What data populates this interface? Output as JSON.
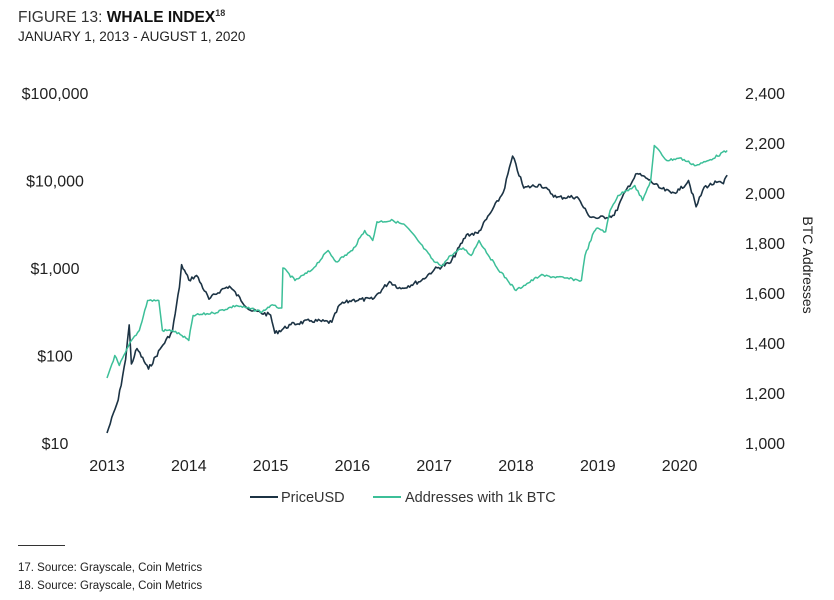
{
  "header": {
    "figure_label": "FIGURE 13: ",
    "title": "WHALE INDEX",
    "title_sup": "18",
    "subtitle": "JANUARY 1, 2013 - AUGUST 1, 2020"
  },
  "chart_data": {
    "type": "line",
    "title": "WHALE INDEX",
    "subtitle": "JANUARY 1, 2013 - AUGUST 1, 2020",
    "xlabel": "",
    "x_ticks": [
      "2013",
      "2014",
      "2015",
      "2016",
      "2017",
      "2018",
      "2019",
      "2020"
    ],
    "xlim": [
      "2013-01-01",
      "2020-08-01"
    ],
    "y_left": {
      "label": "",
      "scale": "log",
      "lim": [
        10,
        100000
      ],
      "ticks": [
        "$10",
        "$100",
        "$1,000",
        "$10,000",
        "$100,000"
      ],
      "tick_values": [
        10,
        100,
        1000,
        10000,
        100000
      ]
    },
    "y_right": {
      "label": "BTC Addresses",
      "scale": "linear",
      "lim": [
        1000,
        2400
      ],
      "ticks": [
        "1,000",
        "1,200",
        "1,400",
        "1,600",
        "1,800",
        "2,000",
        "2,200",
        "2,400"
      ],
      "tick_values": [
        1000,
        1200,
        1400,
        1600,
        1800,
        2000,
        2200,
        2400
      ]
    },
    "grid": false,
    "legend_placement": "bottom",
    "series": [
      {
        "name": "PriceUSD",
        "axis": "left",
        "color": "#1c3344",
        "x": [
          "2013-01-01",
          "2013-02-20",
          "2013-03-25",
          "2013-04-10",
          "2013-04-20",
          "2013-05-15",
          "2013-07-05",
          "2013-09-01",
          "2013-10-20",
          "2013-11-20",
          "2013-11-30",
          "2014-01-01",
          "2014-02-05",
          "2014-04-01",
          "2014-05-25",
          "2014-07-01",
          "2014-10-01",
          "2015-01-01",
          "2015-01-20",
          "2015-04-01",
          "2015-07-01",
          "2015-10-01",
          "2015-11-05",
          "2016-01-01",
          "2016-04-01",
          "2016-06-15",
          "2016-08-05",
          "2016-11-05",
          "2017-01-01",
          "2017-03-15",
          "2017-05-25",
          "2017-07-15",
          "2017-09-10",
          "2017-11-05",
          "2017-12-17",
          "2018-02-05",
          "2018-04-20",
          "2018-07-01",
          "2018-10-01",
          "2018-11-20",
          "2019-01-01",
          "2019-03-15",
          "2019-05-10",
          "2019-06-26",
          "2019-08-10",
          "2019-10-01",
          "2019-11-25",
          "2020-01-01",
          "2020-02-10",
          "2020-03-15",
          "2020-04-20",
          "2020-06-15",
          "2020-07-15",
          "2020-08-01"
        ],
        "values": [
          13,
          31,
          90,
          224,
          80,
          120,
          70,
          125,
          190,
          600,
          1090,
          730,
          820,
          440,
          560,
          620,
          330,
          290,
          180,
          225,
          250,
          240,
          380,
          430,
          440,
          700,
          580,
          720,
          960,
          1150,
          2400,
          2500,
          4300,
          7300,
          19000,
          8200,
          9000,
          6400,
          6500,
          4000,
          3700,
          4000,
          8000,
          12000,
          10500,
          8300,
          7200,
          7800,
          10000,
          5000,
          8400,
          9500,
          9200,
          11500
        ]
      },
      {
        "name": "Addresses with 1k BTC",
        "axis": "right",
        "color": "#3cbf98",
        "x": [
          "2013-01-01",
          "2013-02-05",
          "2013-02-25",
          "2013-04-20",
          "2013-05-25",
          "2013-07-01",
          "2013-08-20",
          "2013-09-05",
          "2013-10-20",
          "2013-12-01",
          "2014-01-01",
          "2014-01-20",
          "2014-04-20",
          "2014-08-01",
          "2014-11-25",
          "2015-01-01",
          "2015-02-20",
          "2015-02-25",
          "2015-04-20",
          "2015-07-01",
          "2015-09-15",
          "2015-10-20",
          "2016-01-01",
          "2016-02-25",
          "2016-04-01",
          "2016-04-20",
          "2016-07-01",
          "2016-08-25",
          "2016-10-20",
          "2017-01-01",
          "2017-02-05",
          "2017-03-15",
          "2017-05-10",
          "2017-06-15",
          "2017-07-20",
          "2017-10-01",
          "2017-11-25",
          "2018-01-01",
          "2018-02-05",
          "2018-04-20",
          "2018-08-05",
          "2018-10-20",
          "2018-11-05",
          "2018-12-15",
          "2019-01-01",
          "2019-02-05",
          "2019-02-25",
          "2019-04-01",
          "2019-05-10",
          "2019-06-15",
          "2019-07-20",
          "2019-08-25",
          "2019-09-10",
          "2019-11-05",
          "2020-01-01",
          "2020-03-15",
          "2020-05-10",
          "2020-08-01"
        ],
        "values": [
          1260,
          1350,
          1310,
          1410,
          1450,
          1570,
          1570,
          1450,
          1450,
          1430,
          1410,
          1510,
          1520,
          1550,
          1525,
          1550,
          1540,
          1700,
          1650,
          1690,
          1770,
          1725,
          1770,
          1850,
          1810,
          1885,
          1890,
          1870,
          1810,
          1725,
          1710,
          1750,
          1780,
          1750,
          1810,
          1710,
          1650,
          1610,
          1630,
          1670,
          1660,
          1650,
          1750,
          1845,
          1860,
          1845,
          1930,
          1990,
          2010,
          2030,
          1970,
          2050,
          2190,
          2130,
          2140,
          2110,
          2130,
          2170
        ]
      }
    ]
  },
  "legend": {
    "items": [
      {
        "label": "PriceUSD",
        "color": "#1c3344"
      },
      {
        "label": "Addresses with 1k BTC",
        "color": "#3cbf98"
      }
    ]
  },
  "footnotes": [
    "17. Source: Grayscale, Coin Metrics",
    "18. Source: Grayscale, Coin Metrics"
  ]
}
